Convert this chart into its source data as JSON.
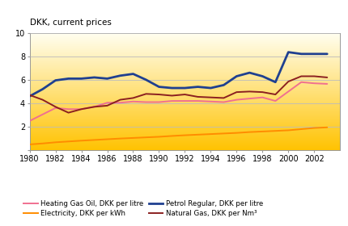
{
  "ylabel": "DKK, current prices",
  "ylim": [
    0,
    10
  ],
  "yticks": [
    0,
    2,
    4,
    6,
    8,
    10
  ],
  "xlim": [
    1980,
    2003
  ],
  "xticks": [
    1980,
    1982,
    1984,
    1986,
    1988,
    1990,
    1992,
    1994,
    1996,
    1998,
    2000,
    2002
  ],
  "bg_top": "#FFFEF0",
  "bg_bottom": "#FFC200",
  "grid_color": "#BBBBBB",
  "heating_gas_oil": {
    "label": "Heating Gas Oil, DKK per litre",
    "color": "#F07090",
    "years": [
      1980,
      1981,
      1982,
      1983,
      1984,
      1985,
      1986,
      1987,
      1988,
      1989,
      1990,
      1991,
      1992,
      1993,
      1994,
      1995,
      1996,
      1997,
      1998,
      1999,
      2000,
      2001,
      2002,
      2003
    ],
    "values": [
      2.5,
      3.05,
      3.6,
      3.5,
      3.5,
      3.7,
      4.05,
      4.05,
      4.15,
      4.1,
      4.1,
      4.2,
      4.2,
      4.2,
      4.15,
      4.1,
      4.3,
      4.4,
      4.5,
      4.2,
      5.0,
      5.8,
      5.7,
      5.65
    ]
  },
  "electricity": {
    "label": "Electricity, DKK per kWh",
    "color": "#FF8C00",
    "years": [
      1980,
      1981,
      1982,
      1983,
      1984,
      1985,
      1986,
      1987,
      1988,
      1989,
      1990,
      1991,
      1992,
      1993,
      1994,
      1995,
      1996,
      1997,
      1998,
      1999,
      2000,
      2001,
      2002,
      2003
    ],
    "values": [
      0.5,
      0.58,
      0.68,
      0.75,
      0.82,
      0.88,
      0.94,
      1.0,
      1.05,
      1.1,
      1.15,
      1.22,
      1.28,
      1.33,
      1.38,
      1.43,
      1.48,
      1.55,
      1.6,
      1.65,
      1.7,
      1.8,
      1.9,
      1.95
    ]
  },
  "petrol_regular": {
    "label": "Petrol Regular, DKK per litre",
    "color": "#1F4090",
    "years": [
      1980,
      1981,
      1982,
      1983,
      1984,
      1985,
      1986,
      1987,
      1988,
      1989,
      1990,
      1991,
      1992,
      1993,
      1994,
      1995,
      1996,
      1997,
      1998,
      1999,
      2000,
      2001,
      2002,
      2003
    ],
    "values": [
      4.6,
      5.2,
      5.95,
      6.1,
      6.1,
      6.2,
      6.1,
      6.35,
      6.5,
      6.0,
      5.4,
      5.3,
      5.3,
      5.4,
      5.3,
      5.55,
      6.3,
      6.6,
      6.3,
      5.8,
      8.35,
      8.2,
      8.2,
      8.2
    ]
  },
  "natural_gas": {
    "label": "Natural Gas, DKK per Nm³",
    "color": "#8B2020",
    "years": [
      1980,
      1981,
      1982,
      1983,
      1984,
      1985,
      1986,
      1987,
      1988,
      1989,
      1990,
      1991,
      1992,
      1993,
      1994,
      1995,
      1996,
      1997,
      1998,
      1999,
      2000,
      2001,
      2002,
      2003
    ],
    "values": [
      4.7,
      4.3,
      3.7,
      3.2,
      3.5,
      3.7,
      3.8,
      4.3,
      4.45,
      4.8,
      4.75,
      4.65,
      4.75,
      4.55,
      4.5,
      4.45,
      4.95,
      5.0,
      4.95,
      4.75,
      5.85,
      6.3,
      6.3,
      6.2
    ]
  },
  "legend_order": [
    "heating_gas_oil",
    "electricity",
    "petrol_regular",
    "natural_gas"
  ]
}
